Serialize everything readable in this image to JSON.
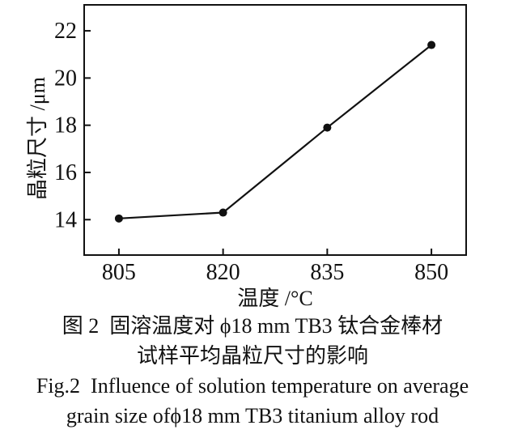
{
  "chart_data": {
    "type": "line",
    "x": [
      805,
      820,
      835,
      850
    ],
    "y": [
      14.05,
      14.3,
      17.9,
      21.4
    ],
    "xticks": [
      805,
      820,
      835,
      850
    ],
    "yticks": [
      14,
      16,
      18,
      20,
      22
    ],
    "xlim": [
      800,
      855
    ],
    "ylim": [
      12.5,
      23.1
    ],
    "xlabel": "温度 /°C",
    "ylabel": "晶粒尺寸 /μm",
    "grid": "off",
    "legend": "none",
    "marker": "filled-circle",
    "line_color": "#111111"
  },
  "caption": {
    "zh_line1": "图 2  固溶温度对 ϕ18 mm TB3 钛合金棒材",
    "zh_line2": "试样平均晶粒尺寸的影响",
    "en_line1": "Fig.2  Influence of solution temperature on average",
    "en_line2": "grain size ofϕ18 mm TB3 titanium alloy rod"
  }
}
